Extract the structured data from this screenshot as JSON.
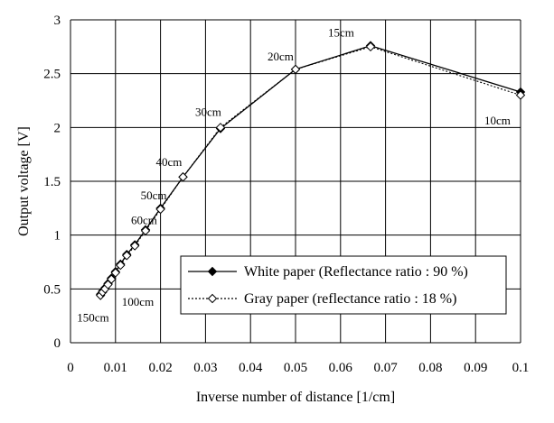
{
  "chart_data": {
    "type": "line",
    "xlabel": "Inverse number of distance [1/cm]",
    "ylabel": "Output voltage [V]",
    "xlim": [
      0,
      0.1
    ],
    "ylim": [
      0,
      3
    ],
    "xticks": [
      0,
      0.01,
      0.02,
      0.03,
      0.04,
      0.05,
      0.06,
      0.07,
      0.08,
      0.09,
      0.1
    ],
    "xtick_labels": [
      "0",
      "0.01",
      "0.02",
      "0.03",
      "0.04",
      "0.05",
      "0.06",
      "0.07",
      "0.08",
      "0.09",
      "0.1"
    ],
    "yticks": [
      0,
      0.5,
      1,
      1.5,
      2,
      2.5,
      3
    ],
    "ytick_labels": [
      "0",
      "0.5",
      "1",
      "1.5",
      "2",
      "2.5",
      "3"
    ],
    "grid": true,
    "legend_position": "bottom-right",
    "series": [
      {
        "name": "White paper (Reflectance ratio : 90 %)",
        "marker": "filled-diamond",
        "line": "solid",
        "x": [
          0.00667,
          0.00714,
          0.00769,
          0.00833,
          0.00909,
          0.01,
          0.01111,
          0.0125,
          0.01429,
          0.01667,
          0.02,
          0.025,
          0.03333,
          0.05,
          0.06667,
          0.1
        ],
        "y": [
          0.45,
          0.48,
          0.51,
          0.55,
          0.6,
          0.66,
          0.73,
          0.82,
          0.91,
          1.05,
          1.25,
          1.54,
          1.99,
          2.54,
          2.76,
          2.33
        ]
      },
      {
        "name": "Gray paper (reflectance ratio : 18 %)",
        "marker": "open-diamond",
        "line": "dotted",
        "x": [
          0.00667,
          0.00714,
          0.00769,
          0.00833,
          0.00909,
          0.01,
          0.01111,
          0.0125,
          0.01429,
          0.01667,
          0.02,
          0.025,
          0.03333,
          0.05,
          0.06667,
          0.1
        ],
        "y": [
          0.44,
          0.47,
          0.5,
          0.54,
          0.59,
          0.65,
          0.72,
          0.81,
          0.9,
          1.04,
          1.24,
          1.54,
          2.0,
          2.54,
          2.75,
          2.3
        ]
      }
    ],
    "annotations": [
      {
        "text": "150cm",
        "x": 0.00667,
        "y": 0.45
      },
      {
        "text": "100cm",
        "x": 0.01,
        "y": 0.66
      },
      {
        "text": "60cm",
        "x": 0.01667,
        "y": 1.05
      },
      {
        "text": "50cm",
        "x": 0.02,
        "y": 1.25
      },
      {
        "text": "40cm",
        "x": 0.025,
        "y": 1.54
      },
      {
        "text": "30cm",
        "x": 0.03333,
        "y": 1.99
      },
      {
        "text": "20cm",
        "x": 0.05,
        "y": 2.54
      },
      {
        "text": "15cm",
        "x": 0.06667,
        "y": 2.76
      },
      {
        "text": "10cm",
        "x": 0.1,
        "y": 2.33
      }
    ]
  }
}
